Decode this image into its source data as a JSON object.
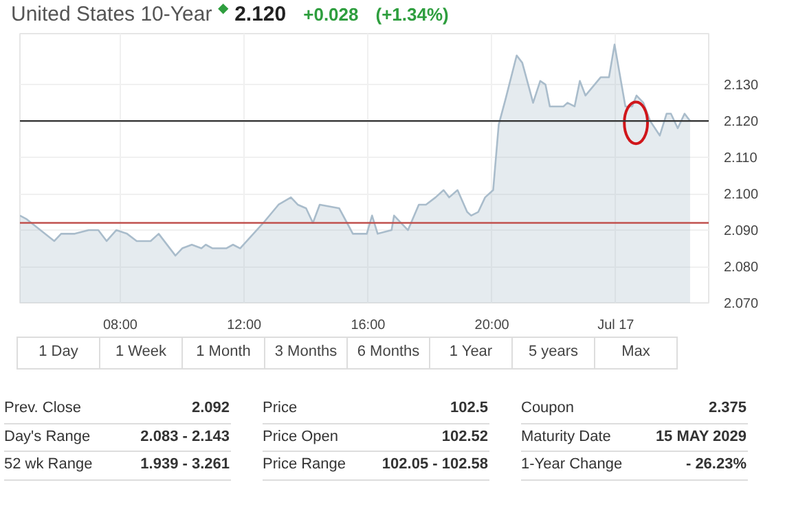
{
  "chart_data": {
    "type": "area",
    "title": "United States 10-Year",
    "annotations": [
      "◆",
      "2.120",
      "+0.028",
      "(+1.34%)",
      "1 Day",
      "1 Week",
      "1 Month",
      "3 Months",
      "6 Months",
      "1 Year",
      "5 years",
      "Max",
      "Prev. Close",
      "2.092",
      "Day's Range",
      "2.083 - 2.143",
      "52 wk Range",
      "1.939 - 3.261",
      "Price",
      "102.5",
      "Price Open",
      "102.52",
      "Price Range",
      "102.05 - 102.58",
      "Coupon",
      "2.375",
      "Maturity Date",
      "15 MAY 2029",
      "1-Year Change",
      "- 26.23%"
    ],
    "x": [
      4.76,
      4.98,
      5.87,
      6.09,
      6.53,
      6.98,
      7.29,
      7.56,
      7.87,
      8.22,
      8.53,
      8.98,
      9.24,
      9.78,
      10.0,
      10.31,
      10.62,
      10.76,
      10.98,
      11.42,
      11.64,
      11.87,
      12.62,
      13.11,
      13.51,
      13.73,
      14.0,
      14.22,
      14.44,
      15.07,
      15.51,
      15.96,
      16.13,
      16.31,
      16.76,
      16.84,
      17.29,
      17.64,
      17.87,
      18.18,
      18.44,
      18.62,
      18.89,
      19.2,
      19.33,
      19.56,
      19.78,
      20.04,
      20.22,
      20.44,
      20.8,
      20.98,
      21.33,
      21.56,
      21.73,
      21.87,
      22.31,
      22.44,
      22.67,
      22.84,
      23.02,
      23.51,
      23.78,
      23.96,
      24.31,
      24.53,
      24.67,
      24.89,
      25.11,
      25.42,
      25.64,
      25.78,
      26.0,
      26.22,
      26.4
    ],
    "series": [
      {
        "color": "#a9bccb",
        "values": [
          2.094,
          2.093,
          2.087,
          2.089,
          2.089,
          2.09,
          2.09,
          2.087,
          2.09,
          2.089,
          2.087,
          2.087,
          2.089,
          2.083,
          2.085,
          2.086,
          2.085,
          2.086,
          2.085,
          2.085,
          2.086,
          2.085,
          2.092,
          2.097,
          2.099,
          2.097,
          2.096,
          2.092,
          2.097,
          2.096,
          2.089,
          2.089,
          2.094,
          2.089,
          2.09,
          2.094,
          2.09,
          2.097,
          2.097,
          2.099,
          2.101,
          2.099,
          2.101,
          2.095,
          2.094,
          2.095,
          2.099,
          2.101,
          2.119,
          2.126,
          2.138,
          2.136,
          2.125,
          2.131,
          2.13,
          2.124,
          2.124,
          2.125,
          2.124,
          2.131,
          2.127,
          2.132,
          2.132,
          2.141,
          2.124,
          2.124,
          2.127,
          2.125,
          2.12,
          2.116,
          2.122,
          2.122,
          2.118,
          2.122,
          2.12
        ]
      }
    ],
    "xlim": [
      4.76,
      27
    ],
    "ylim": [
      2.07,
      2.144
    ],
    "xticks": [
      {
        "value": 8,
        "label": "08:00"
      },
      {
        "value": 12,
        "label": "12:00"
      },
      {
        "value": 16,
        "label": "16:00"
      },
      {
        "value": 20,
        "label": "20:00"
      },
      {
        "value": 24,
        "label": "Jul 17"
      }
    ],
    "yticks": [
      {
        "value": 2.07,
        "label": "2.070"
      },
      {
        "value": 2.08,
        "label": "2.080"
      },
      {
        "value": 2.09,
        "label": "2.090"
      },
      {
        "value": 2.1,
        "label": "2.100"
      },
      {
        "value": 2.11,
        "label": "2.110"
      },
      {
        "value": 2.13,
        "label": "2.130"
      }
    ],
    "ref_lines": [
      {
        "axis": "y",
        "value": 2.12,
        "label": "2.120",
        "color": "#333333"
      },
      {
        "axis": "y",
        "value": 2.092,
        "color": "#c0504d"
      }
    ],
    "grid": true
  }
}
